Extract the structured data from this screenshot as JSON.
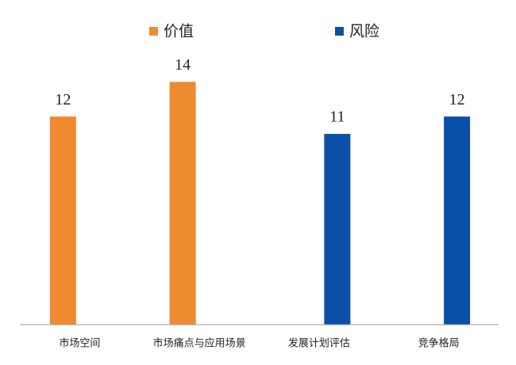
{
  "chart_data": {
    "type": "bar",
    "categories": [
      "市场空间",
      "市场痛点与应用场景",
      "发展计划评估",
      "竞争格局"
    ],
    "series": [
      {
        "name": "价值",
        "color": "#ee8a30",
        "values": [
          12,
          14,
          null,
          null
        ]
      },
      {
        "name": "风险",
        "color": "#0b50a8",
        "values": [
          null,
          null,
          11,
          12
        ]
      }
    ],
    "ylim": [
      0,
      16
    ]
  }
}
